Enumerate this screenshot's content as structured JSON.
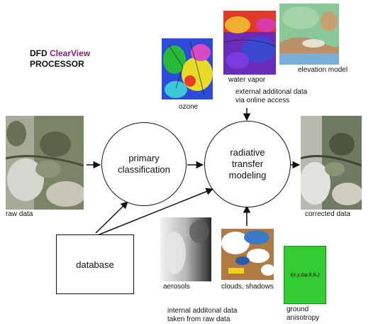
{
  "title": {
    "line1_prefix": "DFD ",
    "line1_brand": "ClearView",
    "line2": "PROCESSOR"
  },
  "nodes": {
    "classification": "primary classification",
    "radiative": "radiative transfer modeling",
    "database": "database"
  },
  "labels": {
    "raw_data": "raw data",
    "corrected_data": "corrected data",
    "ozone": "ozone",
    "water_vapor": "water vapor",
    "elevation_model": "elevation model",
    "external_line1": "external additonal data",
    "external_line2": "via online access",
    "aerosols": "aerosols",
    "clouds_shadows": "clouds, shadows",
    "internal_line1": "internal additonal data",
    "internal_line2": "taken from raw data",
    "ground_line1": "ground",
    "ground_line2": "anisotropy",
    "ground_formula": "I(x,y;Δφ,θ,θ₀)"
  },
  "colors": {
    "brand": "#8a1a8a",
    "ground_box": "#33cc33"
  }
}
